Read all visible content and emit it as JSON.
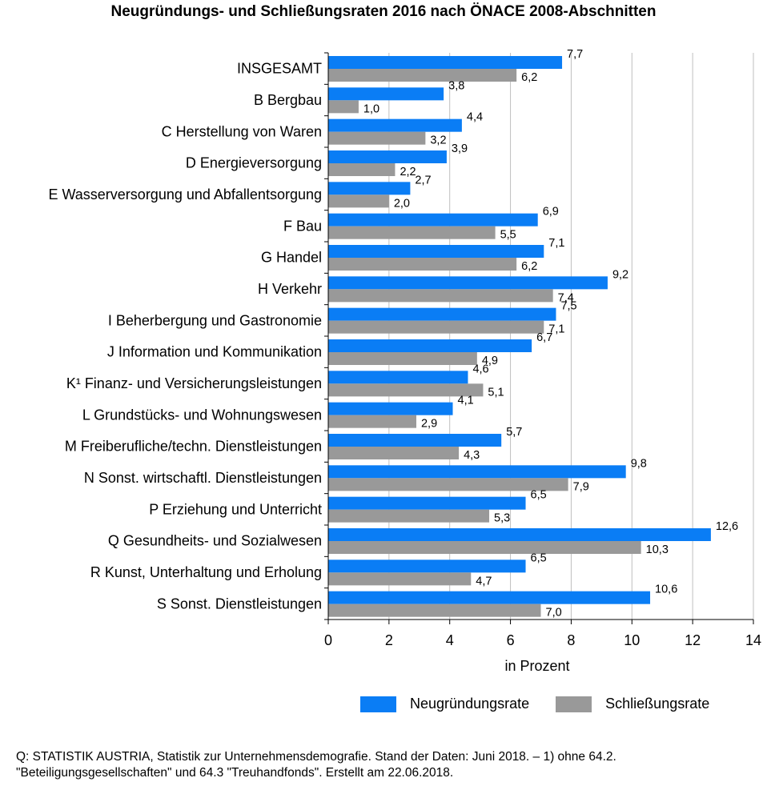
{
  "title": "Neugründungs- und Schließungsraten 2016 nach ÖNACE 2008-Abschnitten",
  "colors": {
    "neugruendung": "#0A7DF5",
    "schliessung": "#999999",
    "grid": "#bfbfbf",
    "axis": "#000000"
  },
  "chart_data": {
    "type": "bar",
    "orientation": "horizontal",
    "title": "Neugründungs- und Schließungsraten 2016 nach ÖNACE 2008-Abschnitten",
    "xlabel": "in Prozent",
    "ylabel": "",
    "xlim": [
      0,
      14
    ],
    "xticks": [
      "0",
      "2",
      "4",
      "6",
      "8",
      "10",
      "12",
      "14"
    ],
    "grid": true,
    "legend_position": "bottom-right",
    "categories": [
      "INSGESAMT",
      "B Bergbau",
      "C Herstellung von Waren",
      "D Energieversorgung",
      "E Wasserversorgung und Abfallentsorgung",
      "F Bau",
      "G Handel",
      "H Verkehr",
      "I Beherbergung und Gastronomie",
      "J Information und Kommunikation",
      "K¹ Finanz- und Versicherungsleistungen",
      "L Grundstücks- und Wohnungswesen",
      "M Freiberufliche/techn. Dienstleistungen",
      "N Sonst. wirtschaftl. Dienstleistungen",
      "P Erziehung und Unterricht",
      "Q Gesundheits- und Sozialwesen",
      "R Kunst, Unterhaltung und Erholung",
      "S Sonst. Dienstleistungen"
    ],
    "series": [
      {
        "name": "Neugründungsrate",
        "values": [
          7.7,
          3.8,
          4.4,
          3.9,
          2.7,
          6.9,
          7.1,
          9.2,
          7.5,
          6.7,
          4.6,
          4.1,
          5.7,
          9.8,
          6.5,
          12.6,
          6.5,
          10.6
        ],
        "labels": [
          "7,7",
          "3,8",
          "4,4",
          "3,9",
          "2,7",
          "6,9",
          "7,1",
          "9,2",
          "7,5",
          "6,7",
          "4,6",
          "4,1",
          "5,7",
          "9,8",
          "6,5",
          "12,6",
          "6,5",
          "10,6"
        ]
      },
      {
        "name": "Schließungsrate",
        "values": [
          6.2,
          1.0,
          3.2,
          2.2,
          2.0,
          5.5,
          6.2,
          7.4,
          7.1,
          4.9,
          5.1,
          2.9,
          4.3,
          7.9,
          5.3,
          10.3,
          4.7,
          7.0
        ],
        "labels": [
          "6,2",
          "1,0",
          "3,2",
          "2,2",
          "2,0",
          "5,5",
          "6,2",
          "7,4",
          "7,1",
          "4,9",
          "5,1",
          "2,9",
          "4,3",
          "7,9",
          "5,3",
          "10,3",
          "4,7",
          "7,0"
        ]
      }
    ]
  },
  "source_note": "Q: STATISTIK AUSTRIA, Statistik zur Unternehmensdemografie. Stand der Daten: Juni 2018. – 1) ohne 64.2. \"Beteiligungsgesellschaften\" und 64.3 \"Treuhandfonds\". Erstellt am 22.06.2018."
}
